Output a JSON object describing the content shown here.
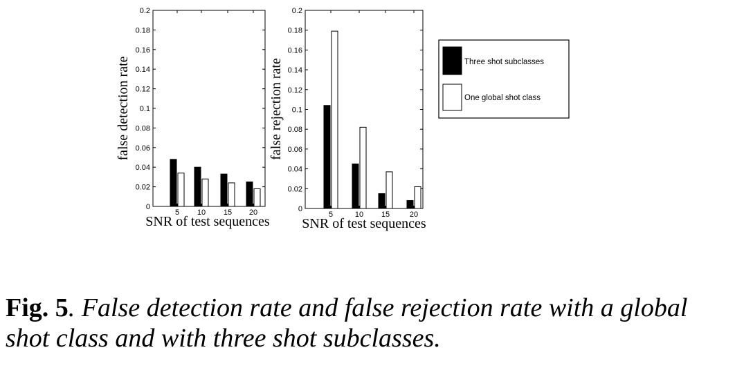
{
  "chart_data": [
    {
      "type": "bar",
      "ylabel": "false detection rate",
      "xlabel": "SNR of test sequences",
      "categories": [
        "5",
        "10",
        "15",
        "20"
      ],
      "ylim": [
        0,
        0.2
      ],
      "yticks": [
        0,
        0.02,
        0.04,
        0.06,
        0.08,
        0.1,
        0.12,
        0.14,
        0.16,
        0.18,
        0.2
      ],
      "ytick_labels": [
        "0",
        "0.02",
        "0.04",
        "0.06",
        "0.08",
        "0.1",
        "0.12",
        "0.14",
        "0.16",
        "0.18",
        "0.2"
      ],
      "series": [
        {
          "name": "Three shot subclasses",
          "color": "#000000",
          "values": [
            0.048,
            0.04,
            0.033,
            0.025
          ]
        },
        {
          "name": "One global shot class",
          "color": "#ffffff",
          "values": [
            0.034,
            0.028,
            0.024,
            0.018
          ]
        }
      ]
    },
    {
      "type": "bar",
      "ylabel": "false rejection rate",
      "xlabel": "SNR of test sequences",
      "categories": [
        "5",
        "10",
        "15",
        "20"
      ],
      "ylim": [
        0,
        0.2
      ],
      "yticks": [
        0,
        0.02,
        0.04,
        0.06,
        0.08,
        0.1,
        0.12,
        0.14,
        0.16,
        0.18,
        0.2
      ],
      "ytick_labels": [
        "0",
        "0.02",
        "0.04",
        "0.06",
        "0.08",
        "0.1",
        "0.12",
        "0.14",
        "0.16",
        "0.18",
        "0.2"
      ],
      "series": [
        {
          "name": "Three shot subclasses",
          "color": "#000000",
          "values": [
            0.104,
            0.045,
            0.015,
            0.008
          ]
        },
        {
          "name": "One global shot class",
          "color": "#ffffff",
          "values": [
            0.179,
            0.082,
            0.037,
            0.022
          ]
        }
      ]
    }
  ],
  "legend": {
    "placement": "right",
    "items": [
      {
        "label": "Three shot subclasses",
        "color": "#000000"
      },
      {
        "label": "One global shot class",
        "color": "#ffffff"
      }
    ]
  },
  "caption": {
    "label": "Fig. 5",
    "text": ". False detection rate and false rejection rate with a global shot class and with three shot subclasses."
  }
}
